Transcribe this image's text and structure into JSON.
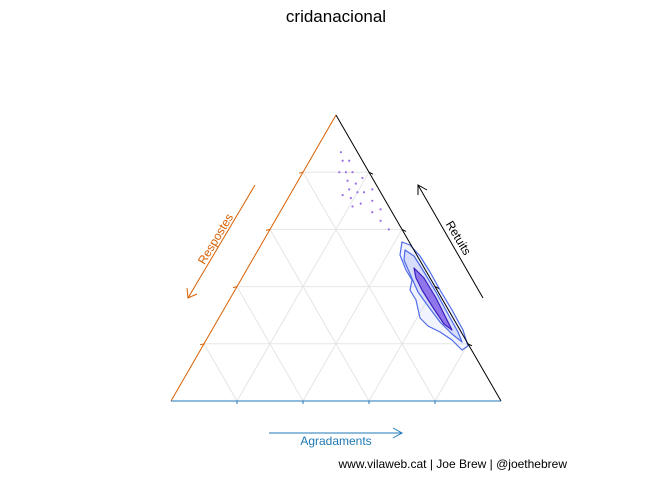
{
  "chart_data": {
    "type": "ternary-density",
    "title": "cridanacional",
    "axes": {
      "left": {
        "label": "Respostes",
        "color": "#d95f02"
      },
      "right": {
        "label": "Retuits",
        "color": "#000000"
      },
      "bottom": {
        "label": "Agradaments",
        "color": "#1f78b4"
      }
    },
    "grid": true,
    "grid_step": 0.2,
    "density_colors": {
      "outer": "#4f6be8",
      "inner": "#3a1fbf",
      "fill": "#6a3fe0"
    },
    "points": [
      {
        "a": 0.05,
        "b": 0.08,
        "c": 0.87
      },
      {
        "a": 0.06,
        "b": 0.1,
        "c": 0.84
      },
      {
        "a": 0.04,
        "b": 0.12,
        "c": 0.84
      },
      {
        "a": 0.07,
        "b": 0.13,
        "c": 0.8
      },
      {
        "a": 0.05,
        "b": 0.15,
        "c": 0.8
      },
      {
        "a": 0.08,
        "b": 0.15,
        "c": 0.77
      },
      {
        "a": 0.06,
        "b": 0.18,
        "c": 0.76
      },
      {
        "a": 0.09,
        "b": 0.17,
        "c": 0.74
      },
      {
        "a": 0.07,
        "b": 0.2,
        "c": 0.73
      },
      {
        "a": 0.1,
        "b": 0.19,
        "c": 0.71
      },
      {
        "a": 0.05,
        "b": 0.22,
        "c": 0.73
      },
      {
        "a": 0.08,
        "b": 0.23,
        "c": 0.69
      },
      {
        "a": 0.04,
        "b": 0.26,
        "c": 0.7
      },
      {
        "a": 0.06,
        "b": 0.28,
        "c": 0.66
      },
      {
        "a": 0.03,
        "b": 0.3,
        "c": 0.67
      },
      {
        "a": 0.05,
        "b": 0.32,
        "c": 0.63
      },
      {
        "a": 0.12,
        "b": 0.16,
        "c": 0.72
      },
      {
        "a": 0.11,
        "b": 0.21,
        "c": 0.68
      },
      {
        "a": 0.03,
        "b": 0.19,
        "c": 0.78
      },
      {
        "a": 0.02,
        "b": 0.24,
        "c": 0.74
      },
      {
        "a": 0.04,
        "b": 0.36,
        "c": 0.6
      },
      {
        "a": 0.09,
        "b": 0.11,
        "c": 0.8
      }
    ],
    "caption": "www.vilaweb.cat | Joe Brew | @joethebrew"
  }
}
